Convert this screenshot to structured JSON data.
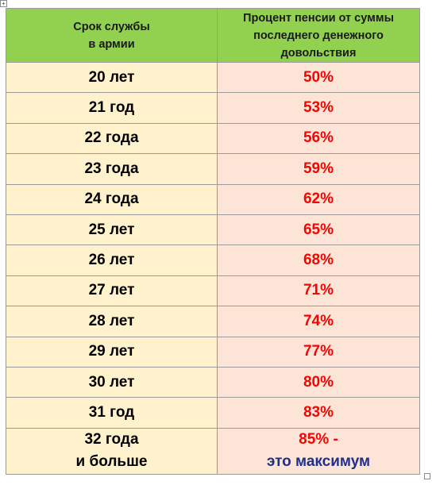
{
  "table": {
    "headers": {
      "years_line1": "Срок службы",
      "years_line2": "в армии",
      "percent_line1": "Процент пенсии от суммы",
      "percent_line2": "последнего денежного",
      "percent_line3": "довольствия"
    },
    "rows": [
      {
        "years": "20 лет",
        "percent": "50%"
      },
      {
        "years": "21 год",
        "percent": "53%"
      },
      {
        "years": "22 года",
        "percent": "56%"
      },
      {
        "years": "23 года",
        "percent": "59%"
      },
      {
        "years": "24 года",
        "percent": "62%"
      },
      {
        "years": "25 лет",
        "percent": "65%"
      },
      {
        "years": "26 лет",
        "percent": "68%"
      },
      {
        "years": "27 лет",
        "percent": "71%"
      },
      {
        "years": "28 лет",
        "percent": "74%"
      },
      {
        "years": "29 лет",
        "percent": "77%"
      },
      {
        "years": "30 лет",
        "percent": "80%"
      },
      {
        "years": "31 год",
        "percent": "83%"
      }
    ],
    "last_row": {
      "years_line1": "32 года",
      "years_line2": "и больше",
      "percent_line1": "85% -",
      "percent_line2": "это максимум"
    }
  },
  "colors": {
    "header_bg": "#92d050",
    "years_bg": "#fff2cc",
    "percent_bg": "#fce4d6",
    "percent_text": "#ff0000",
    "note_text": "#1f2f8a"
  }
}
